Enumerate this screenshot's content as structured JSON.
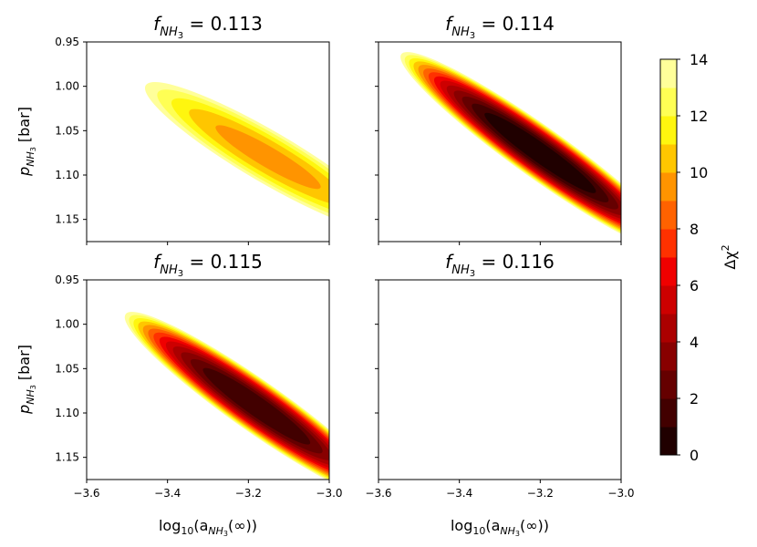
{
  "chart_data": {
    "type": "heatmap",
    "subtype": "filled-contour",
    "layout": "2x2 grid with shared axes",
    "x_axis": {
      "label_prefix": "log",
      "label_sub": "10",
      "label_open": "(a",
      "label_sub2": "NH",
      "label_sub3": "3",
      "label_close": "(∞))",
      "range": [
        -3.6,
        -3.0
      ],
      "ticks": [
        -3.6,
        -3.4,
        -3.2,
        -3.0
      ],
      "tick_labels": [
        "−3.6",
        "−3.4",
        "−3.2",
        "−3.0"
      ]
    },
    "y_axis": {
      "label_main": "p",
      "label_sub": "NH",
      "label_sub2": "3",
      "label_unit": " [bar]",
      "range": [
        0.95,
        1.175
      ],
      "inverted": true,
      "ticks": [
        0.95,
        1.0,
        1.05,
        1.1,
        1.15
      ],
      "tick_labels": [
        "0.95",
        "1.00",
        "1.05",
        "1.10",
        "1.15"
      ]
    },
    "colorbar": {
      "label": "Δχ²",
      "label_main": "Δχ",
      "label_sup": "2",
      "colormap": "afmhot_r",
      "range": [
        0,
        14
      ],
      "levels": [
        0,
        1,
        2,
        3,
        4,
        5,
        6,
        7,
        8,
        9,
        10,
        11,
        12,
        13,
        14
      ],
      "ticks": [
        0,
        2,
        4,
        6,
        8,
        10,
        12,
        14
      ],
      "colors": [
        "#200000",
        "#420000",
        "#650000",
        "#880000",
        "#ab0000",
        "#cd0000",
        "#f00000",
        "#ff3100",
        "#ff6200",
        "#ff9400",
        "#ffc600",
        "#fff60e",
        "#ffff54",
        "#ffff9a",
        "#ffffdc"
      ]
    },
    "panels": [
      {
        "title_main": "f",
        "title_sub": "NH",
        "title_sub2": "3",
        "title_value": " = 0.113",
        "min_delta_chi2": 9.6,
        "ridge_start": [
          -3.45,
          1.0
        ],
        "ridge_end": [
          -3.0,
          1.12
        ]
      },
      {
        "title_main": "f",
        "title_sub": "NH",
        "title_sub2": "3",
        "title_value": " = 0.114",
        "min_delta_chi2": 0.0,
        "ridge_start": [
          -3.54,
          0.965
        ],
        "ridge_end": [
          -3.0,
          1.14
        ]
      },
      {
        "title_main": "f",
        "title_sub": "NH",
        "title_sub2": "3",
        "title_value": " = 0.115",
        "min_delta_chi2": 1.0,
        "ridge_start": [
          -3.5,
          0.99
        ],
        "ridge_end": [
          -3.0,
          1.15
        ]
      },
      {
        "title_main": "f",
        "title_sub": "NH",
        "title_sub2": "3",
        "title_value": " = 0.116",
        "min_delta_chi2": null,
        "ridge_start": null,
        "ridge_end": null
      }
    ]
  }
}
